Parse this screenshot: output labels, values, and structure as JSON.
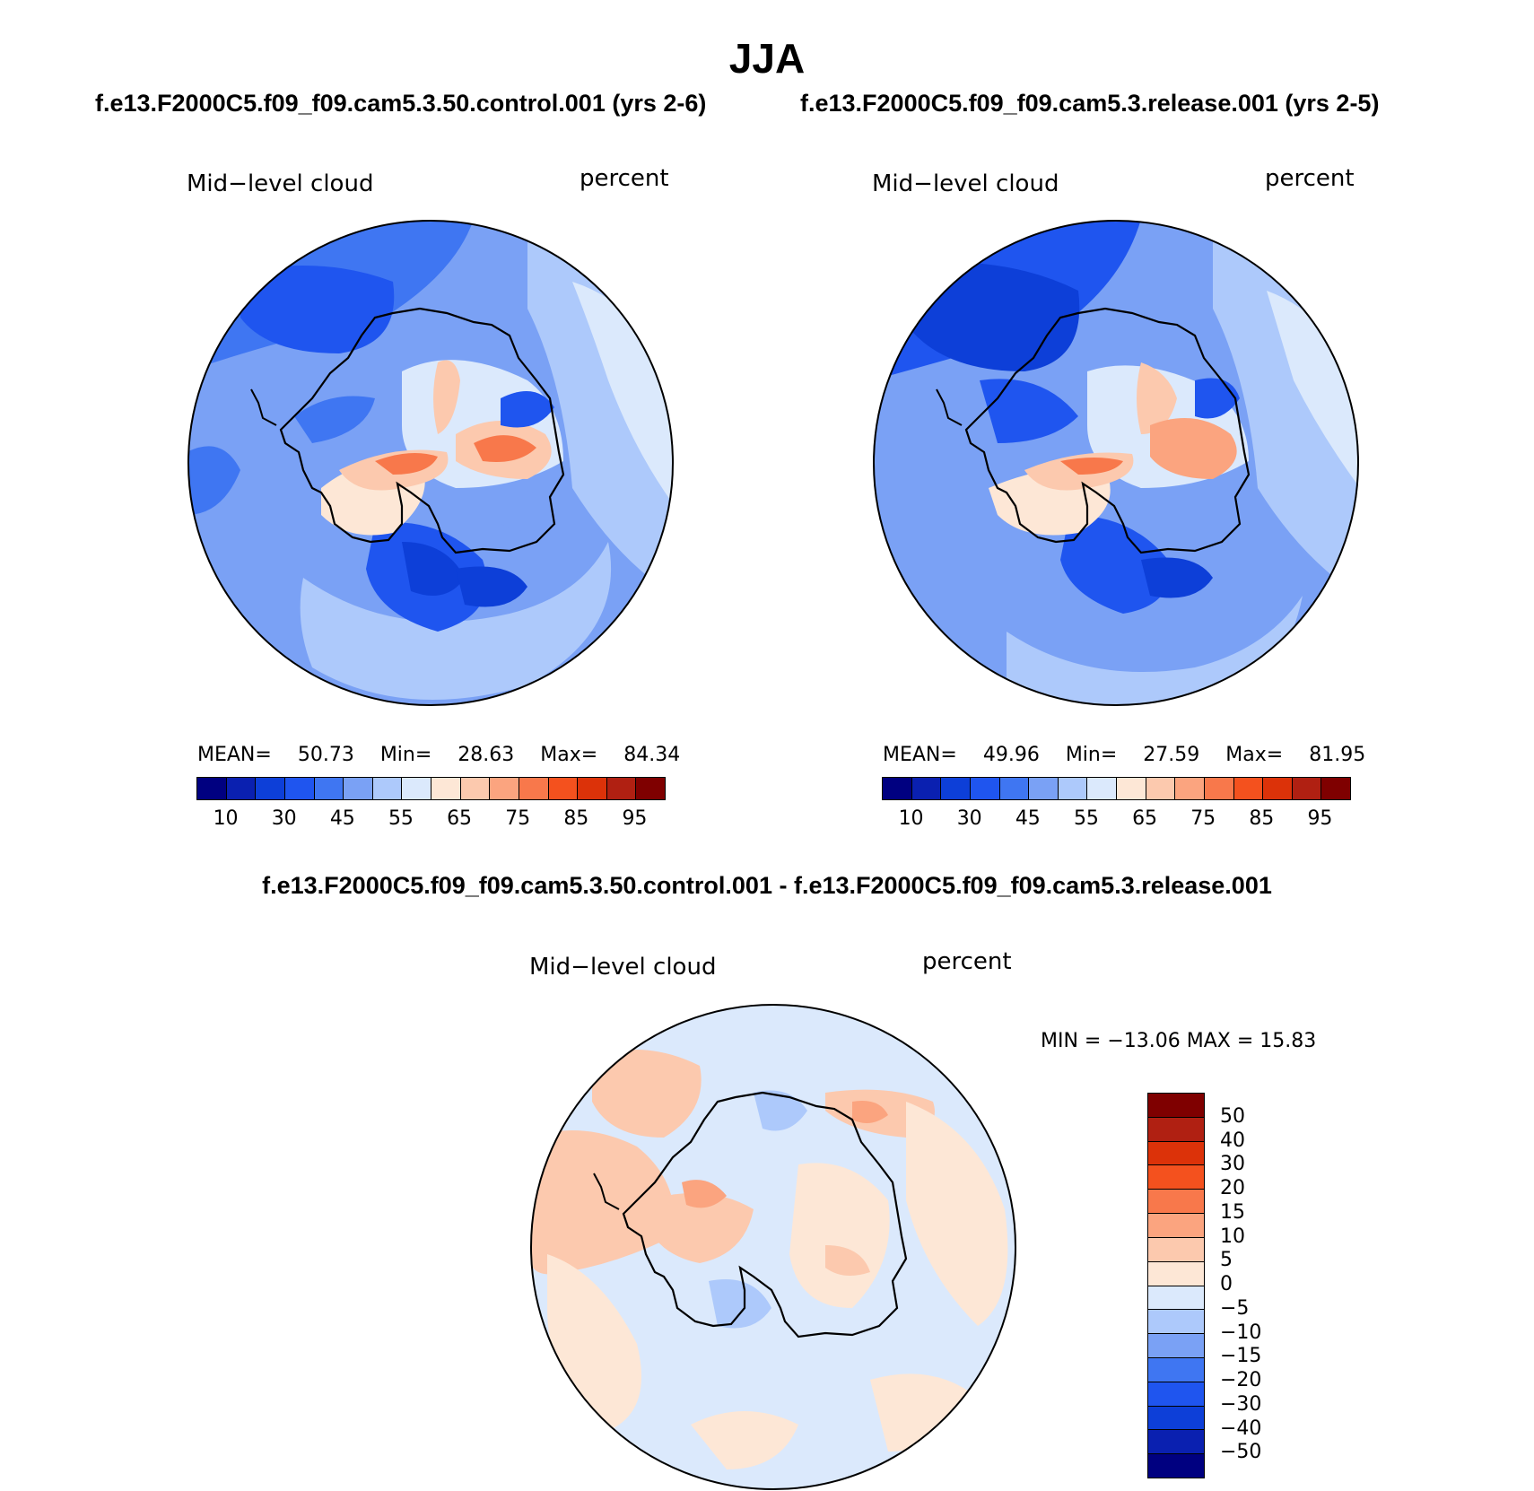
{
  "title": "JJA",
  "panels": [
    {
      "case": "f.e13.F2000C5.f09_f09.cam5.3.50.control.001 (yrs 2-6)",
      "variable": "Mid−level cloud",
      "units": "percent",
      "stats": {
        "mean_label": "MEAN=",
        "mean": "50.73",
        "min_label": "Min=",
        "min": "28.63",
        "max_label": "Max=",
        "max": "84.34"
      }
    },
    {
      "case": "f.e13.F2000C5.f09_f09.cam5.3.release.001 (yrs 2-5)",
      "variable": "Mid−level cloud",
      "units": "percent",
      "stats": {
        "mean_label": "MEAN=",
        "mean": "49.96",
        "min_label": "Min=",
        "min": "27.59",
        "max_label": "Max=",
        "max": "81.95"
      }
    }
  ],
  "abs_colorbar": {
    "colors": [
      "#000080",
      "#0a20b0",
      "#0d3fd8",
      "#1f55ef",
      "#3f76f2",
      "#7aa1f5",
      "#adc9fb",
      "#dbe9fc",
      "#fde7d6",
      "#fcc9ae",
      "#fba47f",
      "#f8784b",
      "#f4511e",
      "#dc3209",
      "#b02012",
      "#7f0000"
    ],
    "tick_labels": [
      "10",
      "30",
      "45",
      "55",
      "65",
      "75",
      "85",
      "95"
    ]
  },
  "difference": {
    "title": "f.e13.F2000C5.f09_f09.cam5.3.50.control.001 - f.e13.F2000C5.f09_f09.cam5.3.release.001",
    "variable": "Mid−level cloud",
    "units": "percent",
    "minmax": "MIN = −13.06  MAX =   15.83"
  },
  "diff_colorbar": {
    "colors": [
      "#7f0000",
      "#b02012",
      "#dc3209",
      "#f4511e",
      "#f8784b",
      "#fba47f",
      "#fcc9ae",
      "#fde7d6",
      "#dbe9fc",
      "#adc9fb",
      "#7aa1f5",
      "#3f76f2",
      "#1f55ef",
      "#0d3fd8",
      "#0a20b0",
      "#000080"
    ],
    "tick_labels": [
      "50",
      "40",
      "30",
      "20",
      "15",
      "10",
      "5",
      "0",
      "−5",
      "−10",
      "−15",
      "−20",
      "−30",
      "−40",
      "−50"
    ]
  }
}
